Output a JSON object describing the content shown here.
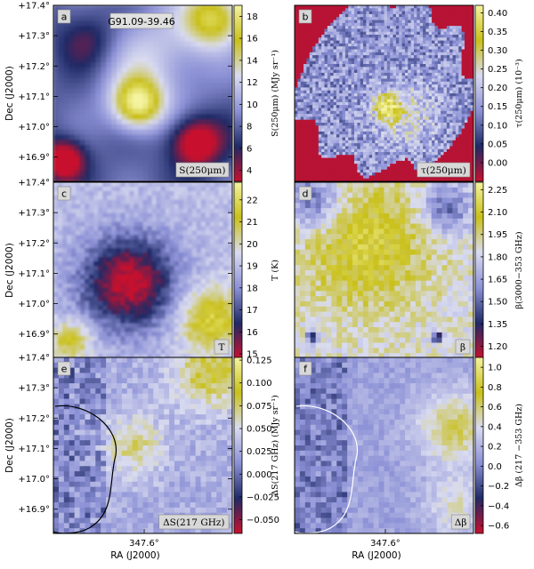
{
  "chart_data": [
    {
      "type": "heatmap",
      "panel_letter": "a",
      "annotation": "G91.09-39.46",
      "corner_label": "S(250μm)",
      "colorbar_label": "S(250μm) (MJy sr⁻¹)",
      "colorbar_ticks": [
        "18",
        "16",
        "14",
        "12",
        "10",
        "8",
        "6",
        "4"
      ],
      "colorbar_range": [
        3,
        19
      ],
      "colormap": [
        "#c8102e",
        "#1f2a66",
        "#8c91d6",
        "#d9dbf0",
        "#c9c01a",
        "#f4f3a0"
      ],
      "map_blobs": [
        {
          "dec": 17.08,
          "ra_frac": 0.37,
          "value": 19
        },
        {
          "dec": 17.38,
          "ra_frac": 0.9,
          "value": 16
        },
        {
          "dec": 16.95,
          "ra_frac": 0.78,
          "value": 4
        },
        {
          "dec": 16.92,
          "ra_frac": 0.08,
          "value": 5
        }
      ]
    },
    {
      "type": "heatmap",
      "panel_letter": "b",
      "corner_label": "τ(250μm)",
      "colorbar_label": "τ(250μm) (10⁻³)",
      "colorbar_ticks": [
        "0.40",
        "0.35",
        "0.30",
        "0.25",
        "0.20",
        "0.15",
        "0.10",
        "0.05",
        "0.00"
      ],
      "colorbar_range": [
        -0.05,
        0.42
      ],
      "colormap": [
        "#c8102e",
        "#1f2a66",
        "#8c91d6",
        "#d9dbf0",
        "#c9c01a",
        "#f4f3a0"
      ]
    },
    {
      "type": "heatmap",
      "panel_letter": "c",
      "corner_label": "T",
      "colorbar_label": "T (K)",
      "colorbar_ticks": [
        "22",
        "21",
        "20",
        "19",
        "18",
        "17",
        "16",
        "15"
      ],
      "colorbar_range": [
        14.8,
        22.8
      ],
      "colormap": [
        "#c8102e",
        "#1f2a66",
        "#8c91d6",
        "#d9dbf0",
        "#c9c01a",
        "#f4f3a0"
      ]
    },
    {
      "type": "heatmap",
      "panel_letter": "d",
      "corner_label": "β",
      "colorbar_label": "β(3000−353 GHz)",
      "colorbar_ticks": [
        "2.25",
        "2.10",
        "1.95",
        "1.80",
        "1.65",
        "1.50",
        "1.35",
        "1.20"
      ],
      "colorbar_range": [
        1.12,
        2.3
      ],
      "colormap": [
        "#c8102e",
        "#1f2a66",
        "#8c91d6",
        "#d9dbf0",
        "#c9c01a",
        "#f4f3a0"
      ]
    },
    {
      "type": "heatmap",
      "panel_letter": "e",
      "corner_label": "ΔS(217 GHz)",
      "colorbar_label": "ΔS(217 GHz) (MJy sr⁻¹)",
      "colorbar_ticks": [
        "0.125",
        "0.100",
        "0.075",
        "0.050",
        "0.025",
        "0.000",
        "−0.025",
        "−0.050"
      ],
      "colorbar_range": [
        -0.065,
        0.128
      ],
      "colormap": [
        "#c8102e",
        "#1f2a66",
        "#8c91d6",
        "#d9dbf0",
        "#c9c01a",
        "#f4f3a0"
      ]
    },
    {
      "type": "heatmap",
      "panel_letter": "f",
      "corner_label": "Δβ",
      "colorbar_label": "Δβ (217 −353 GHz)",
      "colorbar_ticks": [
        "1.0",
        "0.8",
        "0.6",
        "0.4",
        "0.2",
        "0.0",
        "−0.2",
        "−0.4",
        "−0.6"
      ],
      "colorbar_range": [
        -0.68,
        1.1
      ],
      "colormap": [
        "#c8102e",
        "#1f2a66",
        "#8c91d6",
        "#d9dbf0",
        "#c9c01a",
        "#f4f3a0"
      ]
    }
  ],
  "axes": {
    "y_label": "Dec (J2000)",
    "y_ticks": [
      "+17.4°",
      "+17.3°",
      "+17.2°",
      "+17.1°",
      "+17.0°",
      "+16.9°"
    ],
    "y_tick_values": [
      17.4,
      17.3,
      17.2,
      17.1,
      17.0,
      16.9
    ],
    "dec_range": [
      16.82,
      17.4
    ],
    "x_label": "RA (J2000)",
    "x_ticks": [
      "347.6°"
    ]
  }
}
